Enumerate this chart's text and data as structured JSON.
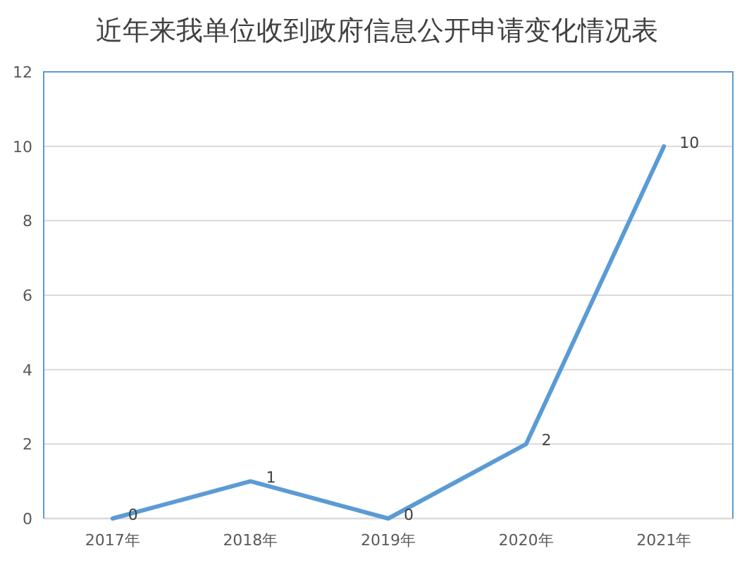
{
  "chart_data": {
    "type": "line",
    "title": "近年来我单位收到政府信息公开申请变化情况表",
    "categories": [
      "2017年",
      "2018年",
      "2019年",
      "2020年",
      "2021年"
    ],
    "series": [
      {
        "color": "#5b9bd5",
        "values": [
          0,
          1,
          0,
          2,
          10
        ]
      }
    ],
    "ylim": [
      0,
      12
    ],
    "yticks": [
      0,
      2,
      4,
      6,
      8,
      10,
      12
    ],
    "grid": "y",
    "data_labels": true,
    "line_style": "solid"
  }
}
